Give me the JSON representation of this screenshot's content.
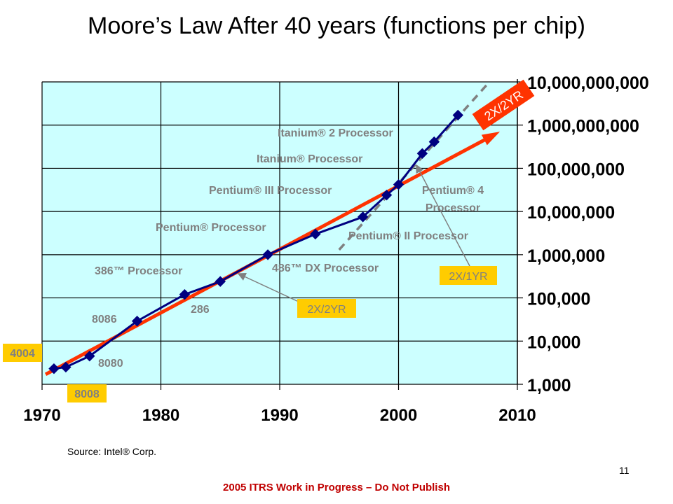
{
  "slide": {
    "title": "Moore’s Law After 40 years (functions per chip)",
    "source": "Source:  Intel® Corp.",
    "page_number": "11",
    "footer_note": "2005 ITRS Work in Progress – Do Not Publish"
  },
  "chart_data": {
    "type": "line",
    "title": "Moore’s Law After 40 years (functions per chip)",
    "xlabel": "",
    "ylabel": "",
    "x_range": [
      1970,
      2010
    ],
    "y_range": [
      1000,
      10000000000
    ],
    "y_scale": "log",
    "grid": true,
    "x_ticks": [
      "1970",
      "1980",
      "1990",
      "2000",
      "2010"
    ],
    "y_ticks": [
      "1,000",
      "10,000",
      "100,000",
      "1,000,000",
      "10,000,000",
      "100,000,000",
      "1,000,000,000",
      "10,000,000,000"
    ],
    "colors": {
      "plot_background": "#ccffff",
      "series_line": "#000080",
      "marker": "#000080",
      "trend_2x2yr": "#ff3300",
      "trend_2x1yr": "#808080",
      "annotation_box": "#ffcc00",
      "label_text": "#808080"
    },
    "series": [
      {
        "points": [
          {
            "x": 1971,
            "y": 2300,
            "label": "4004"
          },
          {
            "x": 1972,
            "y": 2500,
            "label": "8008"
          },
          {
            "x": 1974,
            "y": 4500,
            "label": "8080"
          },
          {
            "x": 1978,
            "y": 29000,
            "label": "8086"
          },
          {
            "x": 1982,
            "y": 120000,
            "label": "286"
          },
          {
            "x": 1985,
            "y": 240000,
            "label": "386™ Processor"
          },
          {
            "x": 1989,
            "y": 1000000,
            "label": "486™ DX Processor"
          },
          {
            "x": 1993,
            "y": 3000000,
            "label": "Pentium® Processor"
          },
          {
            "x": 1997,
            "y": 7500000,
            "label": "Pentium® II Processor"
          },
          {
            "x": 1999,
            "y": 24000000,
            "label": "Pentium® III Processor"
          },
          {
            "x": 2000,
            "y": 42000000,
            "label": "Pentium® 4 Processor"
          },
          {
            "x": 2002,
            "y": 220000000,
            "label": "Itanium® Processor"
          },
          {
            "x": 2003,
            "y": 410000000,
            "label": "Itanium® 2 Processor"
          },
          {
            "x": 2005,
            "y": 1700000000,
            "label": ""
          }
        ]
      }
    ],
    "trend_lines": [
      {
        "name": "2X/2YR",
        "from": [
          1970.3,
          1700
        ],
        "to": [
          2007.8,
          550000000
        ]
      },
      {
        "name": "2X/1YR",
        "from": [
          1995,
          1300000
        ],
        "to": [
          2007.5,
          9000000000
        ]
      }
    ],
    "annotations": [
      {
        "text": "2X/2YR",
        "type": "box"
      },
      {
        "text": "2X/1YR",
        "type": "box"
      },
      {
        "text": "2X/2YR",
        "type": "arrow-label"
      }
    ]
  }
}
